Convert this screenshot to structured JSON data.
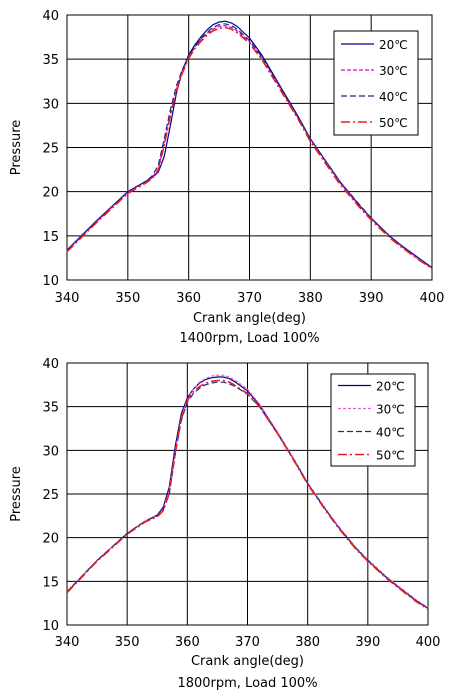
{
  "chart_data": [
    {
      "type": "line",
      "caption": "1400rpm, Load 100%",
      "xlabel": "Crank angle(deg)",
      "ylabel": "Pressure",
      "xlim": [
        340,
        400
      ],
      "ylim": [
        10,
        40
      ],
      "xticks": [
        340,
        350,
        360,
        370,
        380,
        390,
        400
      ],
      "yticks": [
        10,
        15,
        20,
        25,
        30,
        35,
        40
      ],
      "grid": true,
      "legend_position": "top-right",
      "series": [
        {
          "name": "20℃",
          "color": "#00008b",
          "dash": "solid",
          "x": [
            340,
            345,
            350,
            353,
            354,
            355,
            356,
            357,
            358,
            359,
            360,
            361,
            362,
            363,
            364,
            365,
            366,
            367,
            368,
            370,
            372,
            375,
            378,
            380,
            383,
            385,
            388,
            390,
            393,
            395,
            398,
            400
          ],
          "y": [
            13.4,
            16.8,
            20.0,
            21.2,
            21.6,
            22.2,
            24.0,
            27.5,
            31.2,
            33.8,
            35.5,
            36.6,
            37.5,
            38.3,
            38.9,
            39.2,
            39.3,
            39.1,
            38.7,
            37.4,
            35.5,
            32.0,
            28.5,
            26.0,
            23.0,
            21.0,
            18.5,
            17.0,
            15.0,
            13.9,
            12.4,
            11.4
          ]
        },
        {
          "name": "30℃",
          "color": "#e000e0",
          "dash": "4,2",
          "x": [
            340,
            345,
            350,
            353,
            354,
            355,
            356,
            357,
            358,
            359,
            360,
            361,
            362,
            363,
            364,
            365,
            366,
            367,
            368,
            370,
            372,
            375,
            378,
            380,
            383,
            385,
            388,
            390,
            393,
            395,
            398,
            400
          ],
          "y": [
            13.3,
            16.7,
            19.9,
            21.1,
            21.6,
            22.6,
            25.5,
            28.8,
            31.6,
            33.7,
            35.3,
            36.4,
            37.2,
            37.9,
            38.4,
            38.7,
            38.8,
            38.6,
            38.2,
            37.0,
            35.2,
            31.8,
            28.3,
            25.9,
            22.9,
            20.9,
            18.4,
            16.9,
            14.9,
            13.8,
            12.3,
            11.3
          ]
        },
        {
          "name": "40℃",
          "color": "#1a2e7a",
          "dash": "6,3",
          "x": [
            340,
            345,
            350,
            353,
            354,
            355,
            356,
            357,
            358,
            359,
            360,
            361,
            362,
            363,
            364,
            365,
            366,
            367,
            368,
            370,
            372,
            375,
            378,
            380,
            383,
            385,
            388,
            390,
            393,
            395,
            398,
            400
          ],
          "y": [
            13.4,
            16.8,
            20.0,
            21.2,
            21.8,
            23.0,
            26.0,
            29.3,
            32.0,
            33.9,
            35.3,
            36.4,
            37.3,
            38.0,
            38.6,
            38.9,
            39.0,
            38.8,
            38.4,
            37.1,
            35.3,
            31.9,
            28.4,
            26.0,
            23.0,
            21.0,
            18.6,
            17.0,
            15.0,
            13.9,
            12.4,
            11.4
          ]
        },
        {
          "name": "50℃",
          "color": "#e8201a",
          "dash": "9,3,2,3",
          "x": [
            340,
            345,
            350,
            353,
            354,
            355,
            356,
            357,
            358,
            359,
            360,
            361,
            362,
            363,
            364,
            365,
            366,
            367,
            368,
            370,
            372,
            375,
            378,
            380,
            383,
            385,
            388,
            390,
            393,
            395,
            398,
            400
          ],
          "y": [
            13.2,
            16.6,
            19.8,
            21.0,
            21.5,
            22.4,
            25.3,
            28.6,
            31.4,
            33.5,
            35.1,
            36.2,
            37.0,
            37.7,
            38.2,
            38.5,
            38.6,
            38.4,
            38.0,
            36.8,
            35.0,
            31.6,
            28.2,
            25.7,
            22.7,
            20.7,
            18.3,
            16.8,
            14.8,
            13.7,
            12.2,
            11.3
          ]
        }
      ]
    },
    {
      "type": "line",
      "caption": "1800rpm, Load 100%",
      "xlabel": "Crank angle(deg)",
      "ylabel": "Pressure",
      "xlim": [
        340,
        400
      ],
      "ylim": [
        10,
        40
      ],
      "xticks": [
        340,
        350,
        360,
        370,
        380,
        390,
        400
      ],
      "yticks": [
        10,
        15,
        20,
        25,
        30,
        35,
        40
      ],
      "grid": true,
      "legend_position": "top-right",
      "series": [
        {
          "name": "20℃",
          "color": "#00008b",
          "dash": "solid",
          "x": [
            340,
            345,
            350,
            353,
            355,
            356,
            357,
            358,
            359,
            360,
            361,
            362,
            363,
            364,
            365,
            366,
            367,
            368,
            370,
            372,
            375,
            378,
            380,
            383,
            385,
            388,
            390,
            393,
            395,
            398,
            400
          ],
          "y": [
            13.8,
            17.4,
            20.5,
            21.9,
            22.6,
            23.5,
            25.8,
            30.5,
            34.2,
            36.0,
            37.0,
            37.7,
            38.1,
            38.3,
            38.4,
            38.4,
            38.2,
            37.8,
            36.8,
            35.2,
            32.0,
            28.6,
            26.2,
            23.2,
            21.3,
            18.8,
            17.4,
            15.5,
            14.4,
            12.8,
            11.9
          ]
        },
        {
          "name": "30℃",
          "color": "#e060e0",
          "dash": "3,2",
          "x": [
            340,
            345,
            350,
            353,
            355,
            356,
            357,
            358,
            359,
            360,
            361,
            362,
            363,
            364,
            365,
            366,
            367,
            368,
            370,
            372,
            375,
            378,
            380,
            383,
            385,
            388,
            390,
            393,
            395,
            398,
            400
          ],
          "y": [
            13.8,
            17.4,
            20.5,
            21.9,
            22.5,
            23.3,
            25.4,
            30.0,
            33.8,
            35.8,
            37.0,
            37.8,
            38.2,
            38.5,
            38.6,
            38.6,
            38.4,
            38.0,
            37.0,
            35.3,
            32.1,
            28.7,
            26.3,
            23.3,
            21.4,
            18.9,
            17.5,
            15.6,
            14.5,
            12.9,
            12.0
          ]
        },
        {
          "name": "40℃",
          "color": "#1a2e7a",
          "dash": "6,3",
          "x": [
            340,
            345,
            350,
            353,
            355,
            356,
            357,
            358,
            359,
            360,
            361,
            362,
            363,
            364,
            365,
            366,
            367,
            368,
            370,
            372,
            375,
            378,
            380,
            383,
            385,
            388,
            390,
            393,
            395,
            398,
            400
          ],
          "y": [
            13.8,
            17.4,
            20.5,
            21.9,
            22.5,
            23.2,
            25.0,
            29.6,
            33.4,
            35.5,
            36.5,
            37.1,
            37.5,
            37.7,
            37.8,
            37.8,
            37.6,
            37.3,
            36.4,
            35.0,
            31.9,
            28.6,
            26.2,
            23.2,
            21.3,
            18.8,
            17.4,
            15.5,
            14.4,
            12.8,
            11.9
          ]
        },
        {
          "name": "50℃",
          "color": "#e8201a",
          "dash": "9,3,2,3",
          "x": [
            340,
            345,
            350,
            353,
            355,
            356,
            357,
            358,
            359,
            360,
            361,
            362,
            363,
            364,
            365,
            366,
            367,
            368,
            370,
            372,
            375,
            378,
            380,
            383,
            385,
            388,
            390,
            393,
            395,
            398,
            400
          ],
          "y": [
            13.7,
            17.3,
            20.4,
            21.8,
            22.4,
            23.1,
            25.1,
            29.8,
            33.6,
            35.7,
            36.7,
            37.3,
            37.7,
            37.9,
            38.0,
            38.0,
            37.8,
            37.4,
            36.5,
            35.0,
            31.9,
            28.5,
            26.1,
            23.1,
            21.2,
            18.7,
            17.3,
            15.4,
            14.3,
            12.7,
            11.8
          ]
        }
      ]
    }
  ]
}
